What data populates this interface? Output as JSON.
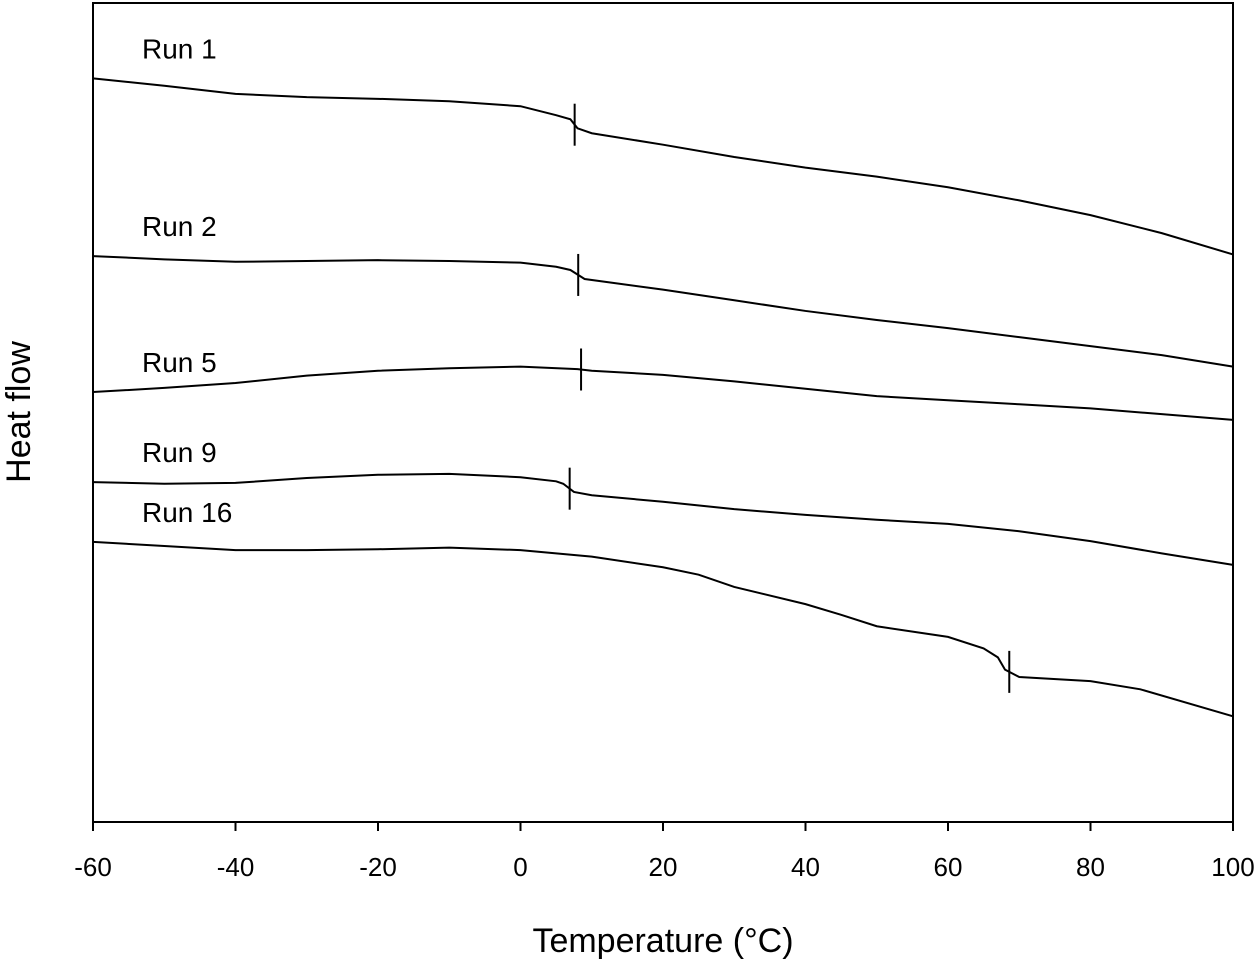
{
  "chart_data": {
    "type": "line",
    "x_label": "Temperature (°C)",
    "y_label": "Heat flow",
    "xlim": [
      -60,
      100
    ],
    "xticks": [
      -60,
      -40,
      -20,
      0,
      20,
      40,
      60,
      80,
      100
    ],
    "ylim": [
      0,
      100
    ],
    "color": "#000000",
    "series": [
      {
        "name": "Run 1",
        "tg": 7.6,
        "x": [
          -60,
          -50,
          -40,
          -30,
          -20,
          -10,
          0,
          5,
          7,
          8,
          10,
          20,
          30,
          40,
          50,
          60,
          70,
          80,
          90,
          100
        ],
        "values": [
          90.8,
          89.9,
          88.9,
          88.5,
          88.3,
          88.0,
          87.4,
          86.3,
          85.8,
          84.7,
          84.1,
          82.7,
          81.2,
          79.9,
          78.8,
          77.5,
          75.9,
          74.1,
          71.9,
          69.3
        ]
      },
      {
        "name": "Run 2",
        "tg": 8.1,
        "x": [
          -60,
          -50,
          -40,
          -30,
          -20,
          -10,
          0,
          5,
          7,
          9,
          20,
          30,
          40,
          50,
          60,
          70,
          80,
          90,
          100
        ],
        "values": [
          69.1,
          68.7,
          68.4,
          68.5,
          68.6,
          68.5,
          68.3,
          67.8,
          67.4,
          66.3,
          65.0,
          63.7,
          62.4,
          61.3,
          60.3,
          59.2,
          58.1,
          57.0,
          55.6
        ]
      },
      {
        "name": "Run 5",
        "tg": 8.5,
        "x": [
          -60,
          -50,
          -40,
          -30,
          -20,
          -10,
          0,
          8,
          10,
          20,
          30,
          40,
          50,
          60,
          70,
          80,
          90,
          100
        ],
        "values": [
          52.5,
          53.0,
          53.6,
          54.5,
          55.1,
          55.4,
          55.6,
          55.3,
          55.1,
          54.6,
          53.8,
          52.9,
          52.0,
          51.5,
          51.0,
          50.5,
          49.8,
          49.1
        ]
      },
      {
        "name": "Run 9",
        "tg": 6.9,
        "x": [
          -60,
          -50,
          -40,
          -30,
          -20,
          -10,
          0,
          5,
          6,
          7.5,
          10,
          20,
          30,
          40,
          50,
          60,
          70,
          80,
          90,
          100
        ],
        "values": [
          41.5,
          41.3,
          41.4,
          42.0,
          42.4,
          42.5,
          42.1,
          41.6,
          41.3,
          40.3,
          39.9,
          39.1,
          38.2,
          37.5,
          36.9,
          36.4,
          35.5,
          34.3,
          32.8,
          31.4
        ]
      },
      {
        "name": "Run 16",
        "tg": 68.6,
        "x": [
          -60,
          -50,
          -40,
          -30,
          -20,
          -10,
          0,
          10,
          20,
          25,
          30,
          40,
          45,
          50,
          60,
          65,
          67,
          68,
          70,
          80,
          87,
          100
        ],
        "values": [
          34.2,
          33.7,
          33.2,
          33.2,
          33.3,
          33.5,
          33.2,
          32.4,
          31.1,
          30.2,
          28.7,
          26.6,
          25.3,
          23.9,
          22.6,
          21.2,
          20.1,
          18.6,
          17.7,
          17.2,
          16.2,
          12.9
        ]
      }
    ]
  }
}
